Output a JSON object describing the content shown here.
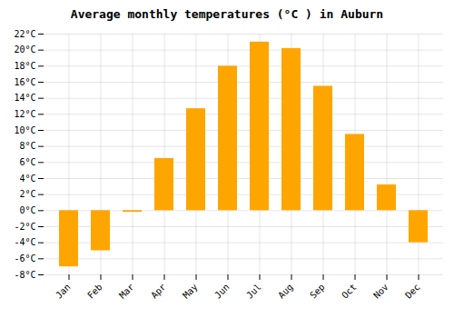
{
  "chart_data": {
    "type": "bar",
    "title": "Average monthly temperatures (°C ) in Auburn",
    "categories": [
      "Jan",
      "Feb",
      "Mar",
      "Apr",
      "May",
      "Jun",
      "Jul",
      "Aug",
      "Sep",
      "Oct",
      "Nov",
      "Dec"
    ],
    "values": [
      -7,
      -5,
      -0.2,
      6.5,
      12.7,
      18,
      21,
      20.2,
      15.5,
      9.5,
      3.2,
      -4
    ],
    "color": "#FFA500",
    "ylim": [
      -8,
      22
    ],
    "yticks": [
      {
        "value": -8,
        "label": "-8°C"
      },
      {
        "value": -6,
        "label": "-6°C"
      },
      {
        "value": -4,
        "label": "-4°C"
      },
      {
        "value": -2,
        "label": "-2°C"
      },
      {
        "value": 0,
        "label": "0°C"
      },
      {
        "value": 2,
        "label": "2°C"
      },
      {
        "value": 4,
        "label": "4°C"
      },
      {
        "value": 6,
        "label": "6°C"
      },
      {
        "value": 8,
        "label": "8°C"
      },
      {
        "value": 10,
        "label": "10°C"
      },
      {
        "value": 12,
        "label": "12°C"
      },
      {
        "value": 14,
        "label": "14°C"
      },
      {
        "value": 16,
        "label": "16°C"
      },
      {
        "value": 18,
        "label": "18°C"
      },
      {
        "value": 20,
        "label": "20°C"
      },
      {
        "value": 22,
        "label": "22°C"
      }
    ],
    "grid": true
  }
}
